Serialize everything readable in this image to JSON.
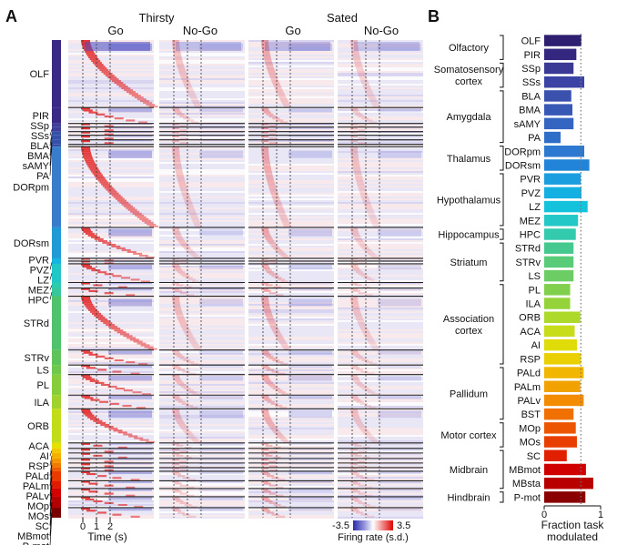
{
  "panel_a": {
    "label": "A",
    "conditions": [
      "Thirsty",
      "Sated"
    ],
    "tasks": [
      "Go",
      "No-Go",
      "Go",
      "No-Go"
    ],
    "x_ticks": [
      "0",
      "1",
      "2"
    ],
    "x_label": "Time (s)",
    "colorbar_min": "-3.5",
    "colorbar_max": "3.5",
    "colorbar_label": "Firing rate (s.d.)",
    "regions": [
      {
        "name": "OLF",
        "units": 0.148,
        "color": "#3b2a85"
      },
      {
        "name": "PIR",
        "units": 0.035,
        "color": "#3b2a85"
      },
      {
        "name": "SSp",
        "units": 0.008,
        "color": "#3f3f9a"
      },
      {
        "name": "SSs",
        "units": 0.01,
        "color": "#3f3f9a"
      },
      {
        "name": "BLA",
        "units": 0.008,
        "color": "#3550a8"
      },
      {
        "name": "BMA",
        "units": 0.01,
        "color": "#3550a8"
      },
      {
        "name": "sAMY",
        "units": 0.01,
        "color": "#3550a8"
      },
      {
        "name": "PA",
        "units": 0.005,
        "color": "#3550a8"
      },
      {
        "name": "DORpm",
        "units": 0.177,
        "color": "#3a7ccc"
      },
      {
        "name": "DORsm",
        "units": 0.068,
        "color": "#1f9ad6"
      },
      {
        "name": "PVR",
        "units": 0.006,
        "color": "#14b3e0"
      },
      {
        "name": "PVZ",
        "units": 0.006,
        "color": "#14b3e0"
      },
      {
        "name": "LZ",
        "units": 0.041,
        "color": "#23c6c6"
      },
      {
        "name": "MEZ",
        "units": 0.012,
        "color": "#2ccbb0"
      },
      {
        "name": "HPC",
        "units": 0.018,
        "color": "#37c79a"
      },
      {
        "name": "STRd",
        "units": 0.118,
        "color": "#4fc26c"
      },
      {
        "name": "STRv",
        "units": 0.033,
        "color": "#5ec45a"
      },
      {
        "name": "LS",
        "units": 0.021,
        "color": "#6ec84c"
      },
      {
        "name": "PL",
        "units": 0.045,
        "color": "#86cd3c"
      },
      {
        "name": "ILA",
        "units": 0.03,
        "color": "#9fd22e"
      },
      {
        "name": "ORB",
        "units": 0.075,
        "color": "#c2dc1a"
      },
      {
        "name": "ACA",
        "units": 0.012,
        "color": "#e6e000"
      },
      {
        "name": "AI",
        "units": 0.01,
        "color": "#f2c800"
      },
      {
        "name": "RSP",
        "units": 0.012,
        "color": "#f5b000"
      },
      {
        "name": "PALd",
        "units": 0.01,
        "color": "#f59500"
      },
      {
        "name": "PALm",
        "units": 0.01,
        "color": "#f07a00"
      },
      {
        "name": "PALv",
        "units": 0.008,
        "color": "#ee5a00"
      },
      {
        "name": "MOp",
        "units": 0.021,
        "color": "#e93a00"
      },
      {
        "name": "MOs",
        "units": 0.017,
        "color": "#e11a00"
      },
      {
        "name": "SC",
        "units": 0.018,
        "color": "#d40000"
      },
      {
        "name": "MBmot",
        "units": 0.024,
        "color": "#b30000"
      },
      {
        "name": "P-mot",
        "units": 0.022,
        "color": "#7a0000"
      }
    ]
  },
  "chart_data": {
    "type": "bar",
    "orientation": "horizontal",
    "panel_label": "B",
    "xlabel": "Fraction task\nmodulated",
    "xlim": [
      0,
      1
    ],
    "x_ticks": [
      "0",
      "1"
    ],
    "reference_line": 0.65,
    "categories": [
      "OLF",
      "PIR",
      "SSp",
      "SSs",
      "BLA",
      "BMA",
      "sAMY",
      "PA",
      "DORpm",
      "DORsm",
      "PVR",
      "PVZ",
      "LZ",
      "MEZ",
      "HPC",
      "STRd",
      "STRv",
      "LS",
      "PL",
      "ILA",
      "ORB",
      "ACA",
      "AI",
      "RSP",
      "PALd",
      "PALm",
      "PALv",
      "BST",
      "MOp",
      "MOs",
      "SC",
      "MBmot",
      "MBsta",
      "P-mot"
    ],
    "values": [
      0.66,
      0.57,
      0.52,
      0.71,
      0.48,
      0.5,
      0.52,
      0.29,
      0.71,
      0.8,
      0.65,
      0.66,
      0.77,
      0.6,
      0.56,
      0.52,
      0.52,
      0.52,
      0.46,
      0.46,
      0.64,
      0.54,
      0.58,
      0.65,
      0.7,
      0.64,
      0.7,
      0.52,
      0.56,
      0.58,
      0.4,
      0.74,
      0.87,
      0.73
    ],
    "colors": [
      "#2e1f70",
      "#332780",
      "#3a3a96",
      "#3b44a4",
      "#3a52ae",
      "#3758b4",
      "#3465c0",
      "#2f6ec8",
      "#2d78d0",
      "#2284d8",
      "#1a9ee0",
      "#14b0e2",
      "#14c2dc",
      "#24c8c6",
      "#34caae",
      "#46c98e",
      "#5acb78",
      "#6ccd64",
      "#80d04e",
      "#94d43a",
      "#acd92a",
      "#c8dd1a",
      "#e0dc0a",
      "#ead000",
      "#f0b600",
      "#f2a200",
      "#f48c00",
      "#f07000",
      "#ec5600",
      "#e83e00",
      "#e02000",
      "#d00000",
      "#b80000",
      "#8a0000"
    ],
    "groups": [
      {
        "label": "Olfactory",
        "items": [
          "OLF",
          "PIR"
        ]
      },
      {
        "label": "Somatosensory\ncortex",
        "items": [
          "SSp",
          "SSs"
        ]
      },
      {
        "label": "Amygdala",
        "items": [
          "BLA",
          "BMA",
          "sAMY",
          "PA"
        ]
      },
      {
        "label": "Thalamus",
        "items": [
          "DORpm",
          "DORsm"
        ]
      },
      {
        "label": "Hypothalamus",
        "items": [
          "PVR",
          "PVZ",
          "LZ",
          "MEZ"
        ]
      },
      {
        "label": "Hippocampus",
        "items": [
          "HPC"
        ]
      },
      {
        "label": "Striatum",
        "items": [
          "STRd",
          "STRv",
          "LS"
        ]
      },
      {
        "label": "Association\ncortex",
        "items": [
          "PL",
          "ILA",
          "ORB",
          "ACA",
          "AI",
          "RSP"
        ]
      },
      {
        "label": "Pallidum",
        "items": [
          "PALd",
          "PALm",
          "PALv",
          "BST"
        ]
      },
      {
        "label": "Motor cortex",
        "items": [
          "MOp",
          "MOs"
        ]
      },
      {
        "label": "Midbrain",
        "items": [
          "SC",
          "MBmot",
          "MBsta"
        ]
      },
      {
        "label": "Hindbrain",
        "items": [
          "P-mot"
        ]
      }
    ]
  }
}
